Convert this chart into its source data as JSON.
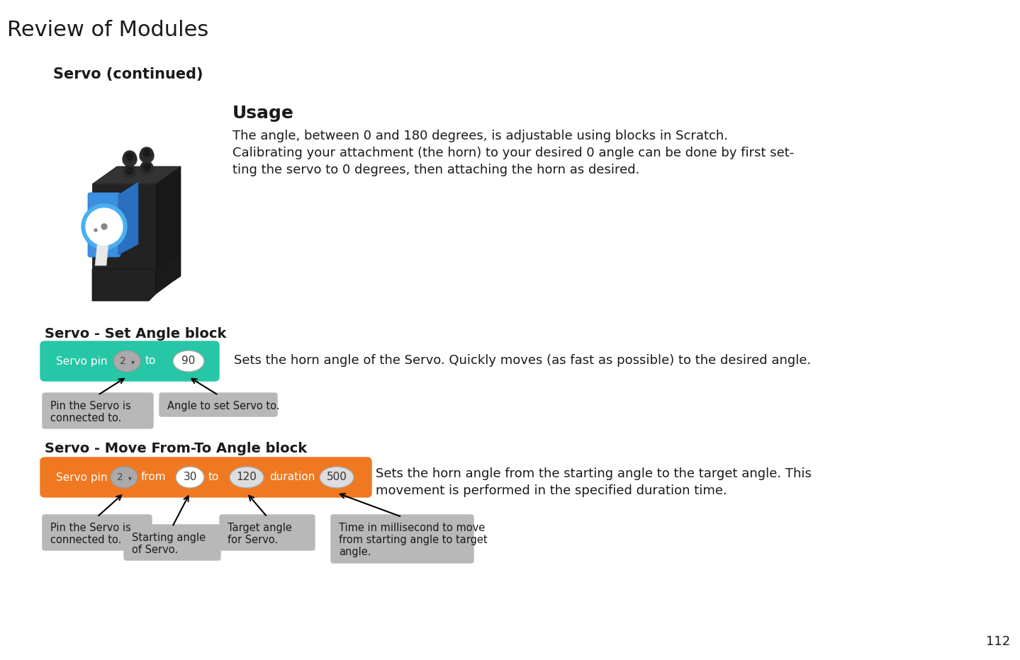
{
  "page_number": "112",
  "title": "Review of Modules",
  "section_title": "Servo (continued)",
  "usage_title": "Usage",
  "usage_text_line1": "The angle, between 0 and 180 degrees, is adjustable using blocks in Scratch.",
  "usage_text_line2": "Calibrating your attachment (the horn) to your desired 0 angle can be done by first set-",
  "usage_text_line3": "ting the servo to 0 degrees, then attaching the horn as desired.",
  "set_angle_block_title": "Servo - Set Angle block",
  "set_angle_description": "Sets the horn angle of the Servo. Quickly moves (as fast as possible) to the desired angle.",
  "set_angle_block_color": "#26c6a6",
  "move_block_title": "Servo - Move From-To Angle block",
  "move_block_color": "#f07820",
  "move_description_line1": "Sets the horn angle from the starting angle to the target angle. This",
  "move_description_line2": "movement is performed in the specified duration time.",
  "bg_color": "#ffffff",
  "text_color": "#1a1a1a",
  "annotation_bg": "#b8b8b8",
  "title_fontsize": 22,
  "section_fontsize": 15,
  "usage_title_fontsize": 18,
  "body_fontsize": 13,
  "block_label_fontsize": 14,
  "annot_fontsize": 10.5
}
